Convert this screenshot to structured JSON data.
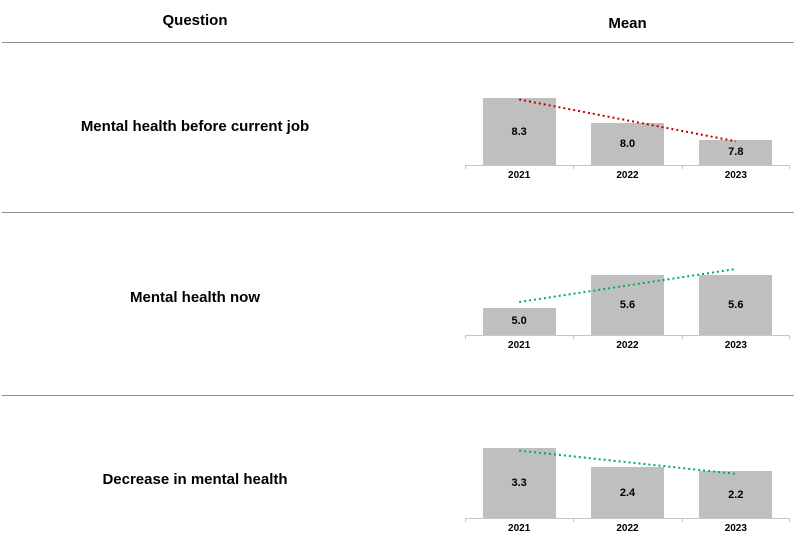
{
  "header": {
    "question_label": "Question",
    "mean_label": "Mean"
  },
  "rows": [
    {
      "question": "Mental health before current job"
    },
    {
      "question": "Mental health now"
    },
    {
      "question": "Decrease in mental health"
    }
  ],
  "chart_data": [
    {
      "type": "bar",
      "title": "Mental health before current job",
      "categories": [
        "2021",
        "2022",
        "2023"
      ],
      "values": [
        8.3,
        8.0,
        7.8
      ],
      "data_labels": [
        "8.3",
        "8.0",
        "7.8"
      ],
      "ylim": [
        7.5,
        8.6
      ],
      "bar_color": "#BFBFBF",
      "grid": false,
      "trendline": {
        "type": "linear",
        "style": "dotted",
        "color": "#C00000",
        "direction": "down"
      }
    },
    {
      "type": "bar",
      "title": "Mental health now",
      "categories": [
        "2021",
        "2022",
        "2023"
      ],
      "values": [
        5.0,
        5.6,
        5.6
      ],
      "data_labels": [
        "5.0",
        "5.6",
        "5.6"
      ],
      "ylim": [
        4.5,
        5.9
      ],
      "bar_color": "#BFBFBF",
      "grid": false,
      "trendline": {
        "type": "linear",
        "style": "dotted",
        "color": "#00B050",
        "direction": "up"
      }
    },
    {
      "type": "bar",
      "title": "Decrease in mental health",
      "categories": [
        "2021",
        "2022",
        "2023"
      ],
      "values": [
        3.3,
        2.4,
        2.2
      ],
      "data_labels": [
        "3.3",
        "2.4",
        "2.2"
      ],
      "ylim": [
        0,
        3.4
      ],
      "bar_color": "#BFBFBF",
      "grid": false,
      "trendline": {
        "type": "linear",
        "style": "dotted",
        "color": "#00B050",
        "direction": "down"
      }
    }
  ],
  "colors": {
    "bar": "#BFBFBF",
    "axis": "#C6C6C6",
    "separator": "#8F8F8F",
    "trend_negative": "#C00000",
    "trend_positive": "#00B050"
  }
}
